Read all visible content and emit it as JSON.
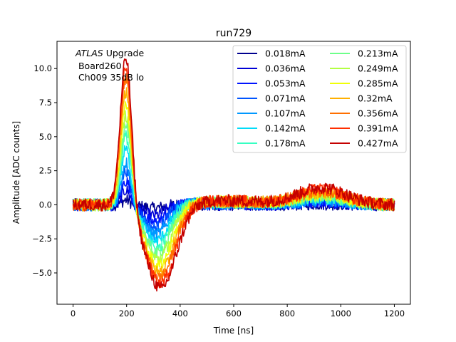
{
  "chart_data": {
    "type": "line",
    "title": "run729",
    "xlabel": "Time [ns]",
    "ylabel": "Amplitude [ADC counts]",
    "xlim": [
      -60,
      1260
    ],
    "ylim": [
      -7.3,
      12.0
    ],
    "xticks": [
      0,
      200,
      400,
      600,
      800,
      1000,
      1200
    ],
    "xtick_labels": [
      "0",
      "200",
      "400",
      "600",
      "800",
      "1000",
      "1200"
    ],
    "yticks": [
      -5.0,
      -2.5,
      0.0,
      2.5,
      5.0,
      7.5,
      10.0
    ],
    "ytick_labels": [
      "−5.0",
      "−2.5",
      "0.0",
      "2.5",
      "5.0",
      "7.5",
      "10.0"
    ],
    "grid": false,
    "legend_placement": "top-right",
    "legend_columns": 2,
    "annotation": {
      "italic": "ATLAS",
      "rest": " Upgrade",
      "line2": " Board260",
      "line3": " Ch009 35dB lo"
    },
    "series": [
      {
        "name": "0.018mA",
        "color": "#00008f",
        "peak": 0.35,
        "trough": -0.25,
        "late": 0.05
      },
      {
        "name": "0.036mA",
        "color": "#0000d6",
        "peak": 1.1,
        "trough": -0.8,
        "late": 0.15
      },
      {
        "name": "0.053mA",
        "color": "#0014ff",
        "peak": 1.8,
        "trough": -1.3,
        "late": 0.2
      },
      {
        "name": "0.071mA",
        "color": "#0054ff",
        "peak": 2.6,
        "trough": -1.7,
        "late": 0.25
      },
      {
        "name": "0.107mA",
        "color": "#0098ff",
        "peak": 3.2,
        "trough": -2.2,
        "late": 0.3
      },
      {
        "name": "0.142mA",
        "color": "#00dcf9",
        "peak": 4.2,
        "trough": -2.7,
        "late": 0.4
      },
      {
        "name": "0.178mA",
        "color": "#36ffc2",
        "peak": 5.2,
        "trough": -3.2,
        "late": 0.5
      },
      {
        "name": "0.213mA",
        "color": "#6dff8a",
        "peak": 6.0,
        "trough": -3.6,
        "late": 0.6
      },
      {
        "name": "0.249mA",
        "color": "#b3ff43",
        "peak": 6.8,
        "trough": -4.0,
        "late": 0.7
      },
      {
        "name": "0.285mA",
        "color": "#f0ff07",
        "peak": 7.6,
        "trough": -4.5,
        "late": 0.8
      },
      {
        "name": "0.32mA",
        "color": "#ffb000",
        "peak": 8.6,
        "trough": -5.0,
        "late": 0.9
      },
      {
        "name": "0.356mA",
        "color": "#ff6f00",
        "peak": 9.6,
        "trough": -5.4,
        "late": 1.0
      },
      {
        "name": "0.391mA",
        "color": "#ff2e00",
        "peak": 10.5,
        "trough": -5.8,
        "late": 1.1
      },
      {
        "name": "0.427mA",
        "color": "#c40000",
        "peak": 11.2,
        "trough": -6.2,
        "late": 1.25
      }
    ]
  }
}
